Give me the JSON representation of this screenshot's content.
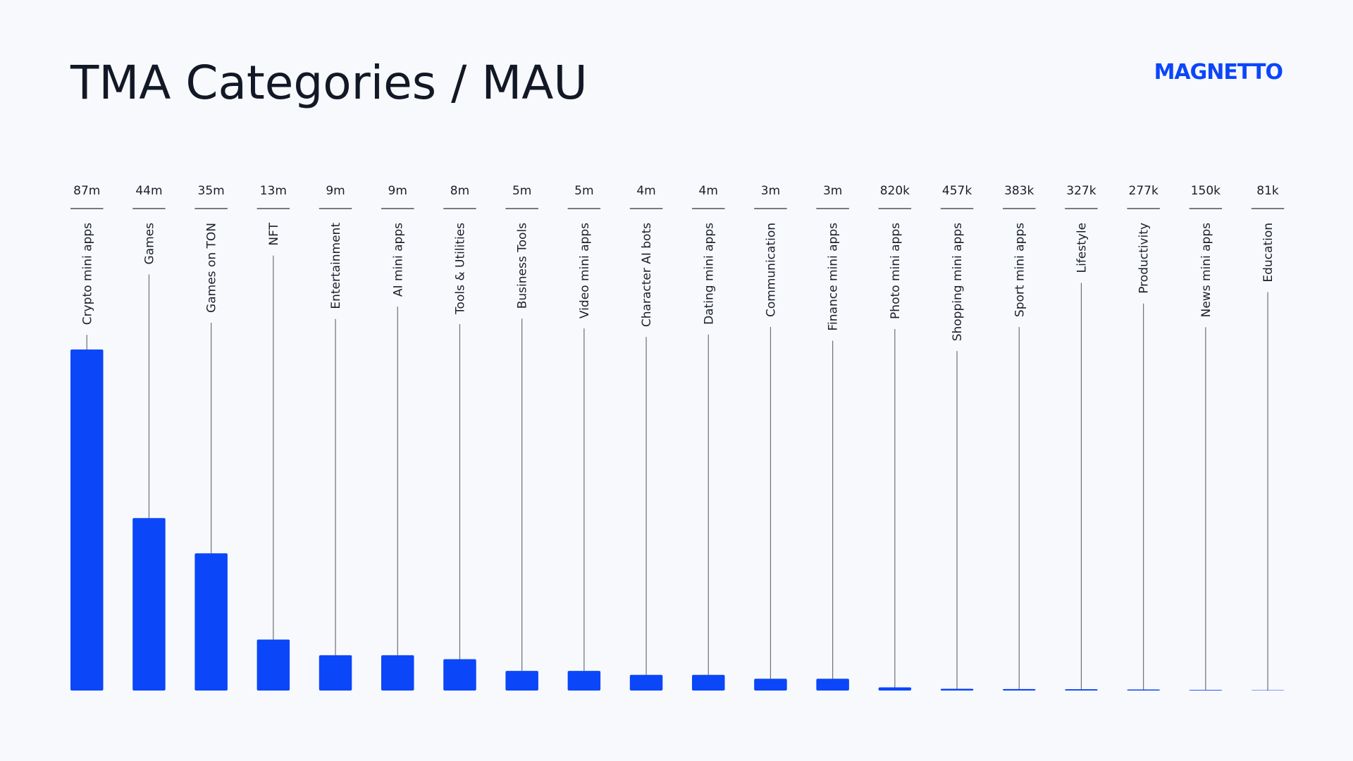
{
  "brand": "MAGNETTO",
  "chart_data": {
    "type": "bar",
    "title": "TMA Categories / MAU",
    "color": "#0b46f9",
    "categories": [
      "Crypto mini apps",
      "Games",
      "Games on TON",
      "NFT",
      "Entertainment",
      "AI mini apps",
      "Tools & Utilities",
      "Business Tools",
      "Video mini apps",
      "Character AI bots",
      "Dating mini apps",
      "Communication",
      "Finance mini apps",
      "Photo mini apps",
      "Shopping mini apps",
      "Sport mini apps",
      "Lifestyle",
      "Productivity",
      "News mini apps",
      "Education"
    ],
    "values": [
      87,
      44,
      35,
      13,
      9,
      9,
      8,
      5,
      5,
      4,
      4,
      3,
      3,
      0.82,
      0.457,
      0.383,
      0.327,
      0.277,
      0.15,
      0.081
    ],
    "value_labels": [
      "87m",
      "44m",
      "35m",
      "13m",
      "9m",
      "9m",
      "8m",
      "5m",
      "5m",
      "4m",
      "4m",
      "3m",
      "3m",
      "820k",
      "457k",
      "383k",
      "327k",
      "277k",
      "150k",
      "81k"
    ]
  }
}
